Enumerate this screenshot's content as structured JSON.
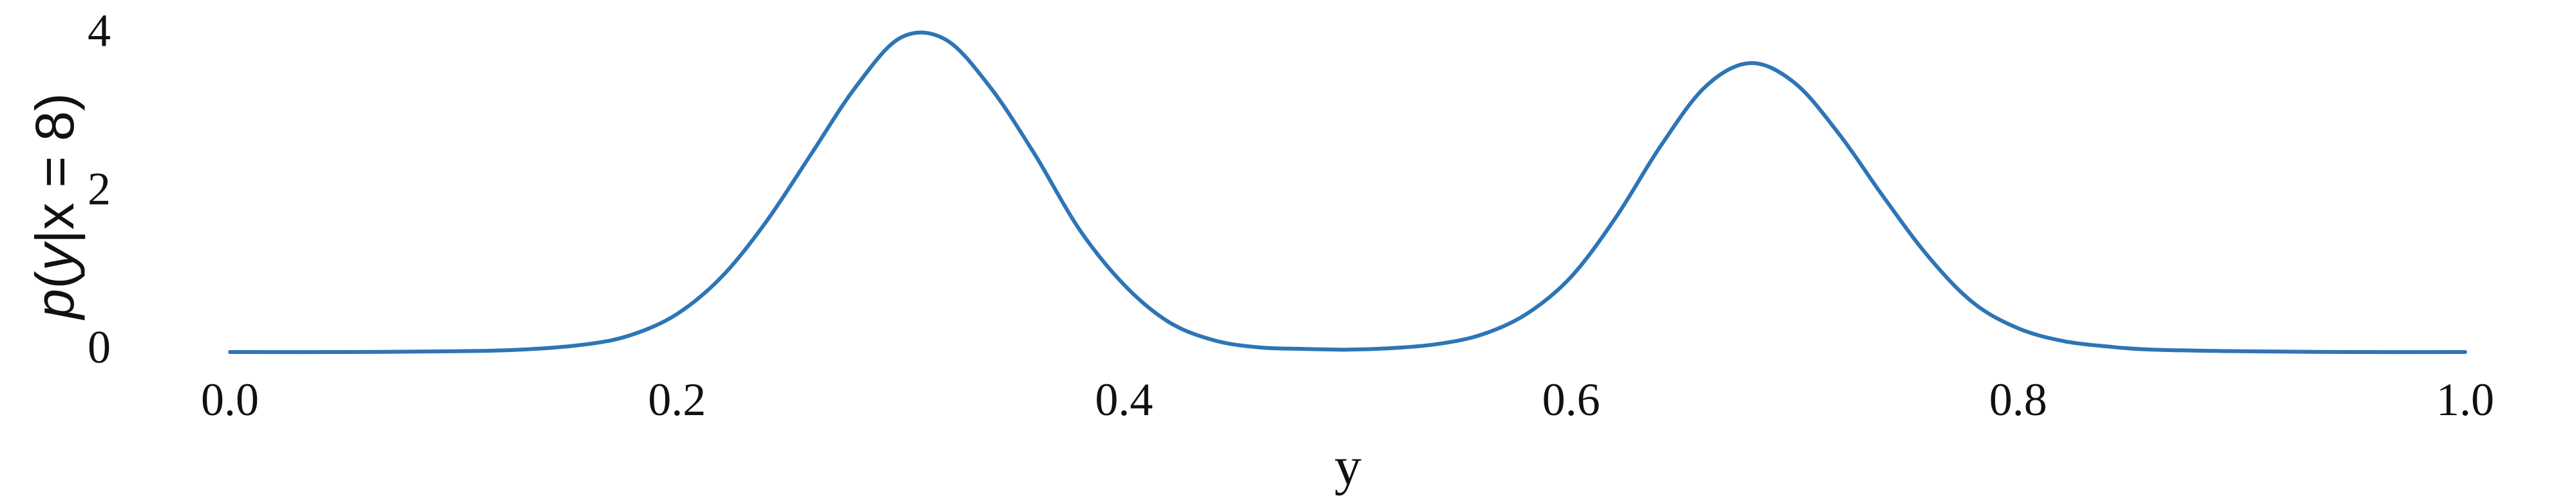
{
  "chart_data": {
    "type": "line",
    "xlabel": "y",
    "ylabel": {
      "p": "p",
      "open": "(",
      "y": "y",
      "bar": "|",
      "x": "x",
      "eq": " = ",
      "value": "8",
      "close": ")"
    },
    "xlim": [
      0.0,
      1.0
    ],
    "ylim": [
      0,
      4
    ],
    "x_ticks": [
      "0.0",
      "0.2",
      "0.4",
      "0.6",
      "0.8",
      "1.0"
    ],
    "y_ticks": [
      "0",
      "2",
      "4"
    ],
    "grid": false,
    "line_color": "#2e75b6",
    "series": [
      {
        "x": [
          0.0,
          0.05,
          0.1,
          0.13,
          0.16,
          0.18,
          0.2,
          0.22,
          0.24,
          0.26,
          0.28,
          0.3,
          0.32,
          0.34,
          0.36,
          0.38,
          0.4,
          0.42,
          0.44,
          0.46,
          0.48,
          0.5,
          0.52,
          0.54,
          0.56,
          0.58,
          0.6,
          0.62,
          0.64,
          0.66,
          0.68,
          0.7,
          0.72,
          0.74,
          0.76,
          0.78,
          0.8,
          0.82,
          0.84,
          0.86,
          0.9,
          0.95,
          1.0
        ],
        "values": [
          0.0,
          0.0,
          0.01,
          0.03,
          0.1,
          0.22,
          0.48,
          0.95,
          1.65,
          2.5,
          3.35,
          3.97,
          3.95,
          3.35,
          2.5,
          1.55,
          0.85,
          0.38,
          0.15,
          0.06,
          0.04,
          0.03,
          0.05,
          0.1,
          0.22,
          0.48,
          0.95,
          1.7,
          2.6,
          3.35,
          3.65,
          3.4,
          2.75,
          1.95,
          1.2,
          0.62,
          0.3,
          0.14,
          0.07,
          0.03,
          0.01,
          0.0,
          0.0
        ]
      }
    ]
  }
}
